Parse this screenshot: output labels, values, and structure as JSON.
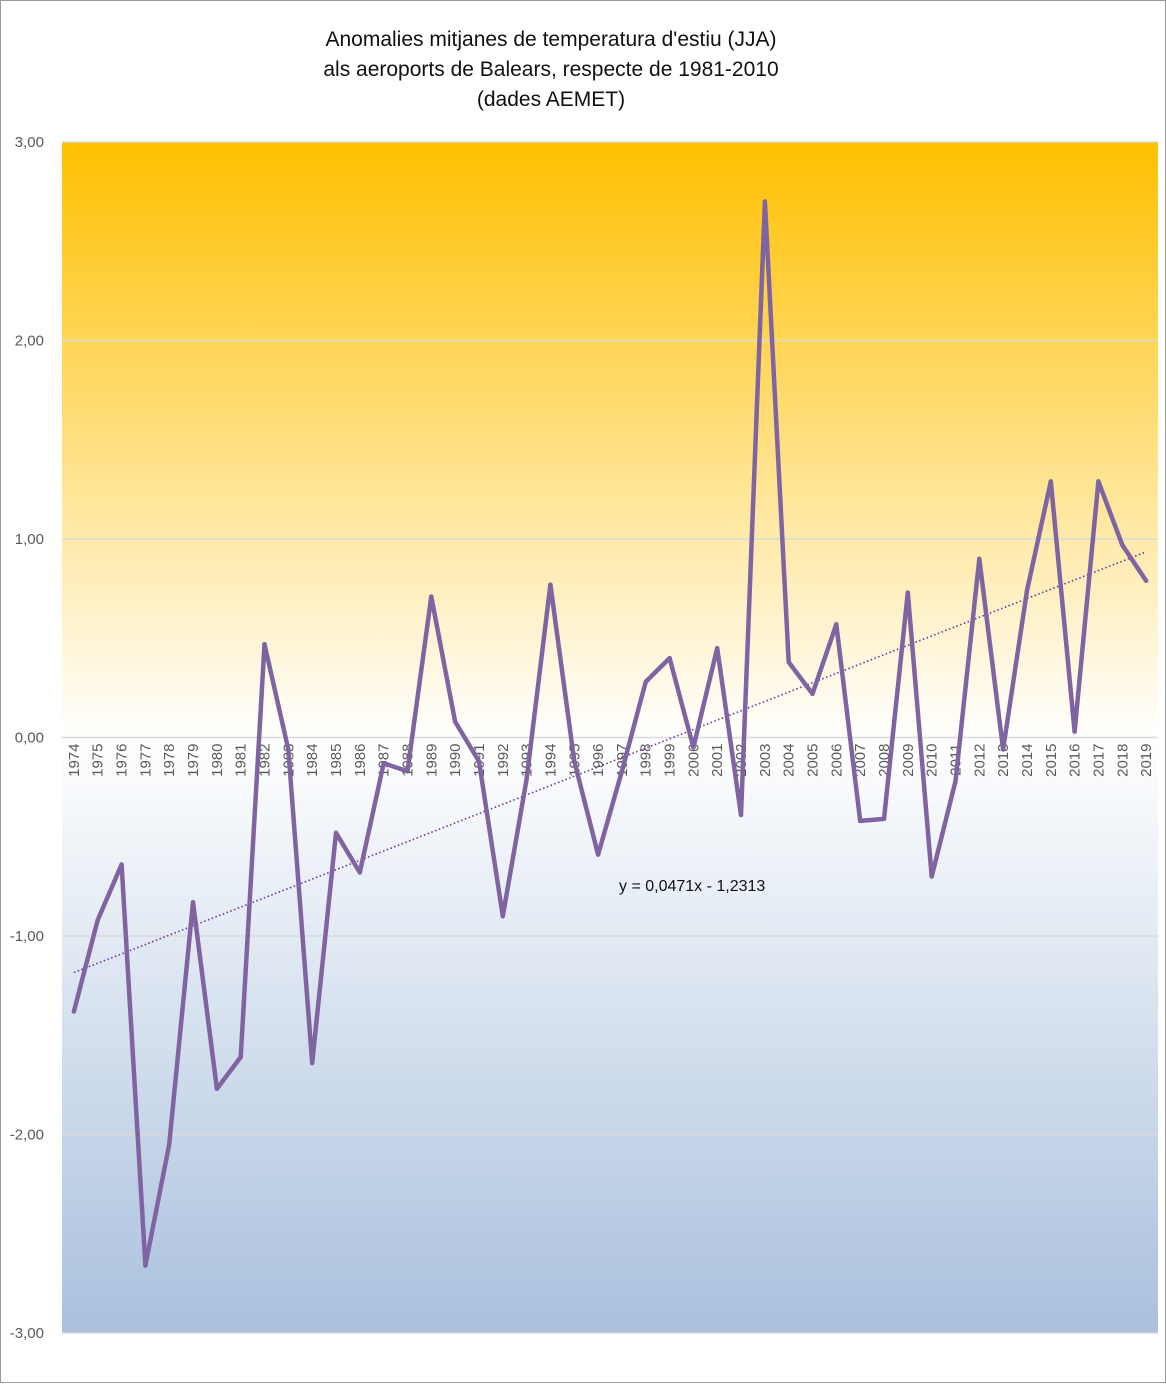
{
  "chart_data": {
    "type": "line",
    "title": [
      "Anomalies mitjanes de temperatura d'estiu (JJA)",
      "als aeroports de Balears, respecte de 1981-2010",
      "(dades AEMET)"
    ],
    "xlabel": "",
    "ylabel": "",
    "ylim": [
      -3,
      3
    ],
    "yticks": [
      "-3,00",
      "-2,00",
      "-1,00",
      "0,00",
      "1,00",
      "2,00",
      "3,00"
    ],
    "grid": true,
    "legend": "none",
    "categories": [
      "1974",
      "1975",
      "1976",
      "1977",
      "1978",
      "1979",
      "1980",
      "1981",
      "1982",
      "1983",
      "1984",
      "1985",
      "1986",
      "1987",
      "1988",
      "1989",
      "1990",
      "1991",
      "1992",
      "1993",
      "1994",
      "1995",
      "1996",
      "1997",
      "1998",
      "1999",
      "2000",
      "2001",
      "2002",
      "2003",
      "2004",
      "2005",
      "2006",
      "2007",
      "2008",
      "2009",
      "2010",
      "2011",
      "2012",
      "2013",
      "2014",
      "2015",
      "2016",
      "2017",
      "2018",
      "2019"
    ],
    "series": [
      {
        "color": "#8064a2",
        "values": [
          -1.38,
          -0.92,
          -0.64,
          -2.66,
          -2.05,
          -0.83,
          -1.77,
          -1.61,
          0.47,
          -0.06,
          -1.64,
          -0.48,
          -0.68,
          -0.13,
          -0.17,
          0.71,
          0.08,
          -0.12,
          -0.9,
          -0.21,
          0.77,
          -0.12,
          -0.59,
          -0.17,
          0.28,
          0.4,
          -0.05,
          0.45,
          -0.39,
          2.7,
          0.38,
          0.22,
          0.57,
          -0.42,
          -0.41,
          0.73,
          -0.7,
          -0.22,
          0.9,
          -0.06,
          0.74,
          1.29,
          0.03,
          1.29,
          0.97,
          0.79
        ]
      }
    ],
    "trendline": {
      "equation": "y = 0,0471x - 1,2313",
      "slope": 0.0471,
      "intercept": -1.2313,
      "color": "#7030a0",
      "style": "dotted"
    },
    "background_gradient": {
      "top_color": "#ffc000",
      "mid_color": "#ffffff",
      "bottom_color": "#a9c0dd"
    }
  }
}
